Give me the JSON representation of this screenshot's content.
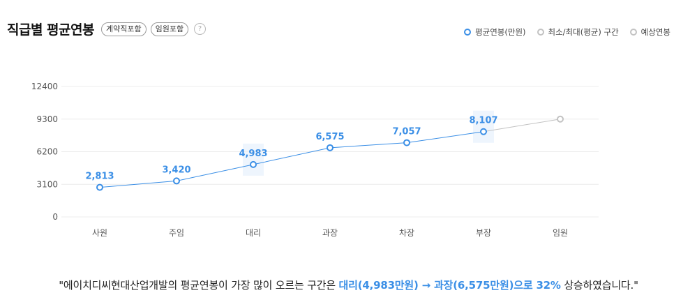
{
  "header": {
    "title": "직급별 평균연봉",
    "tags": [
      "계약직포함",
      "임원포함"
    ],
    "help_glyph": "?"
  },
  "legend": [
    {
      "label": "평균연봉(만원)",
      "color": "#3b8fe6"
    },
    {
      "label": "최소/최대(평균) 구간",
      "color": "#c2c2c2"
    },
    {
      "label": "예상연봉",
      "color": "#c2c2c2"
    }
  ],
  "chart_data": {
    "type": "line",
    "categories": [
      "사원",
      "주임",
      "대리",
      "과장",
      "차장",
      "부장",
      "임원"
    ],
    "series": [
      {
        "name": "평균연봉(만원)",
        "values": [
          2813,
          3420,
          4983,
          6575,
          7057,
          8107,
          null
        ],
        "labels": [
          "2,813",
          "3,420",
          "4,983",
          "6,575",
          "7,057",
          "8,107",
          ""
        ],
        "color": "#3b8fe6"
      },
      {
        "name": "예상연봉",
        "values": [
          null,
          null,
          null,
          null,
          null,
          8107,
          9300
        ],
        "color": "#c2c2c2"
      }
    ],
    "highlight_categories": [
      "대리",
      "부장"
    ],
    "yticks": [
      0,
      3100,
      6200,
      9300,
      12400
    ],
    "ylim": [
      0,
      12400
    ],
    "grid": true,
    "legend_position": "top-right"
  },
  "summary": {
    "prefix": "\"에이치디씨현대산업개발의 평균연봉이 가장 많이 오르는 구간은 ",
    "highlight": "대리(4,983만원) → 과장(6,575만원)으로 32%",
    "suffix": " 상승하였습니다.\""
  }
}
